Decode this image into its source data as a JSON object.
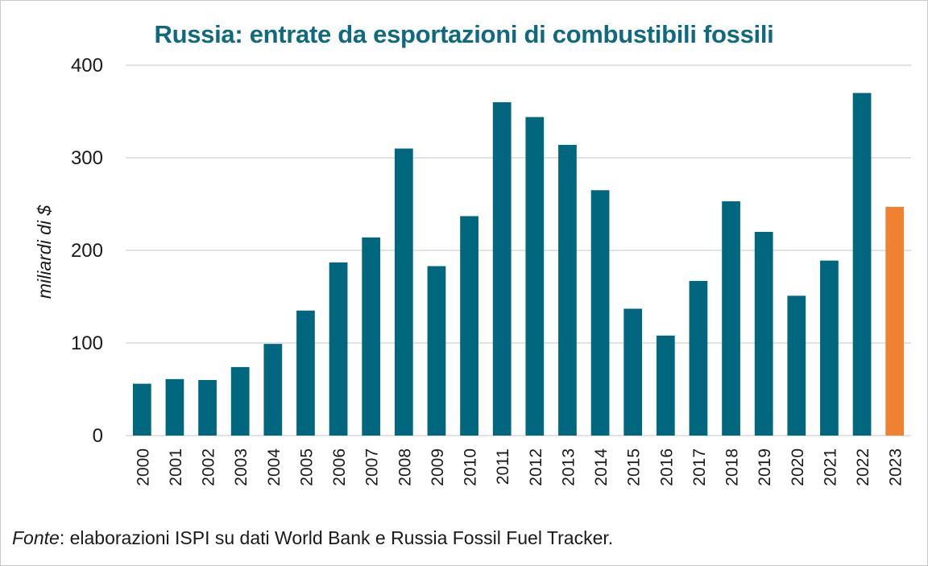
{
  "chart_data": {
    "type": "bar",
    "title": "Russia: entrate da esportazioni di combustibili fossili",
    "ylabel": "miliardi di $",
    "xlabel": "",
    "ylim": [
      0,
      400
    ],
    "yticks": [
      "0",
      "100",
      "200",
      "300",
      "400"
    ],
    "grid": true,
    "categories": [
      "2000",
      "2001",
      "2002",
      "2003",
      "2004",
      "2005",
      "2006",
      "2007",
      "2008",
      "2009",
      "2010",
      "2011",
      "2012",
      "2013",
      "2014",
      "2015",
      "2016",
      "2017",
      "2018",
      "2019",
      "2020",
      "2021",
      "2022",
      "2023"
    ],
    "values": [
      56,
      61,
      60,
      74,
      99,
      135,
      187,
      214,
      310,
      183,
      237,
      360,
      344,
      314,
      265,
      137,
      108,
      167,
      253,
      220,
      151,
      189,
      370,
      247
    ],
    "colors": {
      "default": "#00677f",
      "highlight": "#f08130",
      "grid": "#d9d9d9",
      "title": "#0f6a80"
    },
    "highlight_category": "2023"
  },
  "source": {
    "label": "Fonte",
    "text": ": elaborazioni ISPI su dati World Bank e Russia Fossil Fuel Tracker."
  }
}
